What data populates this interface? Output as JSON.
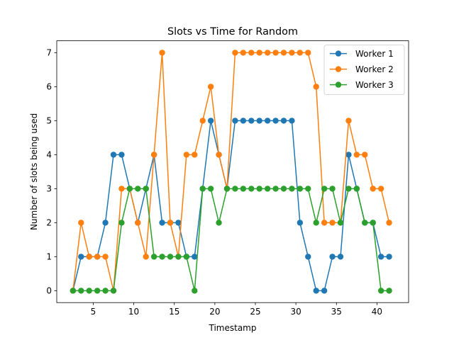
{
  "chart_data": {
    "type": "line",
    "title": "Slots vs Time for Random",
    "xlabel": "Timestamp",
    "ylabel": "Number of slots being used",
    "xlim": [
      0.5,
      43.9
    ],
    "ylim": [
      -0.35,
      7.35
    ],
    "x_ticks": [
      5,
      10,
      15,
      20,
      25,
      30,
      35,
      40
    ],
    "y_ticks": [
      0,
      1,
      2,
      3,
      4,
      5,
      6,
      7
    ],
    "grid": false,
    "legend_position": "top-right",
    "x": [
      2.5,
      3.5,
      4.5,
      5.5,
      6.5,
      7.5,
      8.5,
      9.5,
      10.5,
      11.5,
      12.5,
      13.5,
      14.5,
      15.5,
      16.5,
      17.5,
      18.5,
      19.5,
      20.5,
      21.5,
      22.5,
      23.5,
      24.5,
      25.5,
      26.5,
      27.5,
      28.5,
      29.5,
      30.5,
      31.5,
      32.5,
      33.5,
      34.5,
      35.5,
      36.5,
      37.5,
      38.5,
      39.5,
      40.5,
      41.5
    ],
    "series": [
      {
        "name": "Worker 1",
        "color": "#1f77b4",
        "values": [
          0,
          1,
          1,
          1,
          2,
          4,
          4,
          3,
          2,
          3,
          4,
          2,
          2,
          2,
          1,
          1,
          3,
          5,
          4,
          3,
          5,
          5,
          5,
          5,
          5,
          5,
          5,
          5,
          2,
          1,
          0,
          0,
          1,
          1,
          4,
          3,
          2,
          2,
          1,
          1
        ]
      },
      {
        "name": "Worker 2",
        "color": "#ff7f0e",
        "values": [
          0,
          2,
          1,
          1,
          1,
          0,
          3,
          3,
          2,
          1,
          4,
          7,
          2,
          1,
          4,
          4,
          5,
          6,
          4,
          3,
          7,
          7,
          7,
          7,
          7,
          7,
          7,
          7,
          7,
          7,
          6,
          2,
          2,
          2,
          5,
          4,
          4,
          3,
          3,
          2
        ]
      },
      {
        "name": "Worker 3",
        "color": "#2ca02c",
        "values": [
          0,
          0,
          0,
          0,
          0,
          0,
          2,
          3,
          3,
          3,
          1,
          1,
          1,
          1,
          1,
          0,
          3,
          3,
          2,
          3,
          3,
          3,
          3,
          3,
          3,
          3,
          3,
          3,
          3,
          3,
          2,
          3,
          3,
          2,
          3,
          3,
          2,
          2,
          0,
          0
        ]
      }
    ]
  }
}
